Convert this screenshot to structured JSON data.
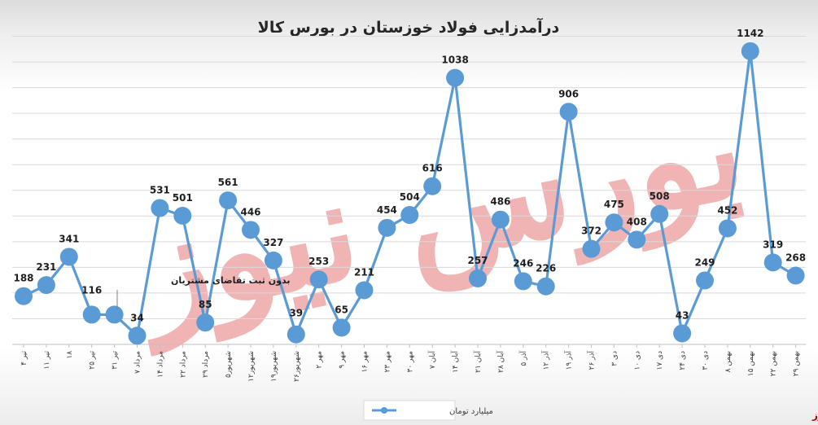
{
  "chart_data": {
    "type": "line",
    "title": "درآمدزایی فولاد خوزستان در بورس کالا",
    "categories": [
      "۴ تیر",
      "۱۱ تیر",
      "۱۸",
      "۲۵ تیر",
      "۳۱ تیر",
      "۷ مرداد",
      "۱۴ مرداد",
      "۲۲ مرداد",
      "۲۹ مرداد",
      "۵شهریور",
      "۱۲شهریور",
      "۱۹شهریور",
      "۲۶شهریور",
      "۲ مهر",
      "۹ مهر",
      "۱۶ مهر",
      "۲۳ مهر",
      "۳۰ مهر",
      "۷ آبان",
      "۱۴ آبان",
      "۲۱ آبان",
      "۲۸ آبان",
      "۵ آذر",
      "۱۲ آذر",
      "۱۹ آذر",
      "۲۶ آذر",
      "۳ دی",
      "۱۰ دی",
      "۱۷ دی",
      "۲۴ دی",
      "۳۰ دی",
      "۸ بهمن",
      "۱۵ بهمن",
      "۲۲ بهمن",
      "۲۹ بهمن"
    ],
    "series": [
      {
        "name": "میلیارد تومان",
        "values": [
          188,
          231,
          341,
          116,
          null,
          34,
          531,
          501,
          85,
          561,
          446,
          327,
          39,
          253,
          65,
          211,
          454,
          504,
          616,
          1038,
          257,
          486,
          246,
          226,
          906,
          372,
          475,
          408,
          508,
          43,
          249,
          452,
          1142,
          319,
          268
        ]
      }
    ],
    "missing_values": [
      116,
      34
    ],
    "ylim": [
      0,
      1300
    ],
    "grid": true,
    "legend": "bottom",
    "annotation": "بدون ثبت تقاضای مشتریان",
    "color": "#5b9bd5"
  },
  "watermark": "بورس نیوز",
  "brand": "بورس نیوز"
}
